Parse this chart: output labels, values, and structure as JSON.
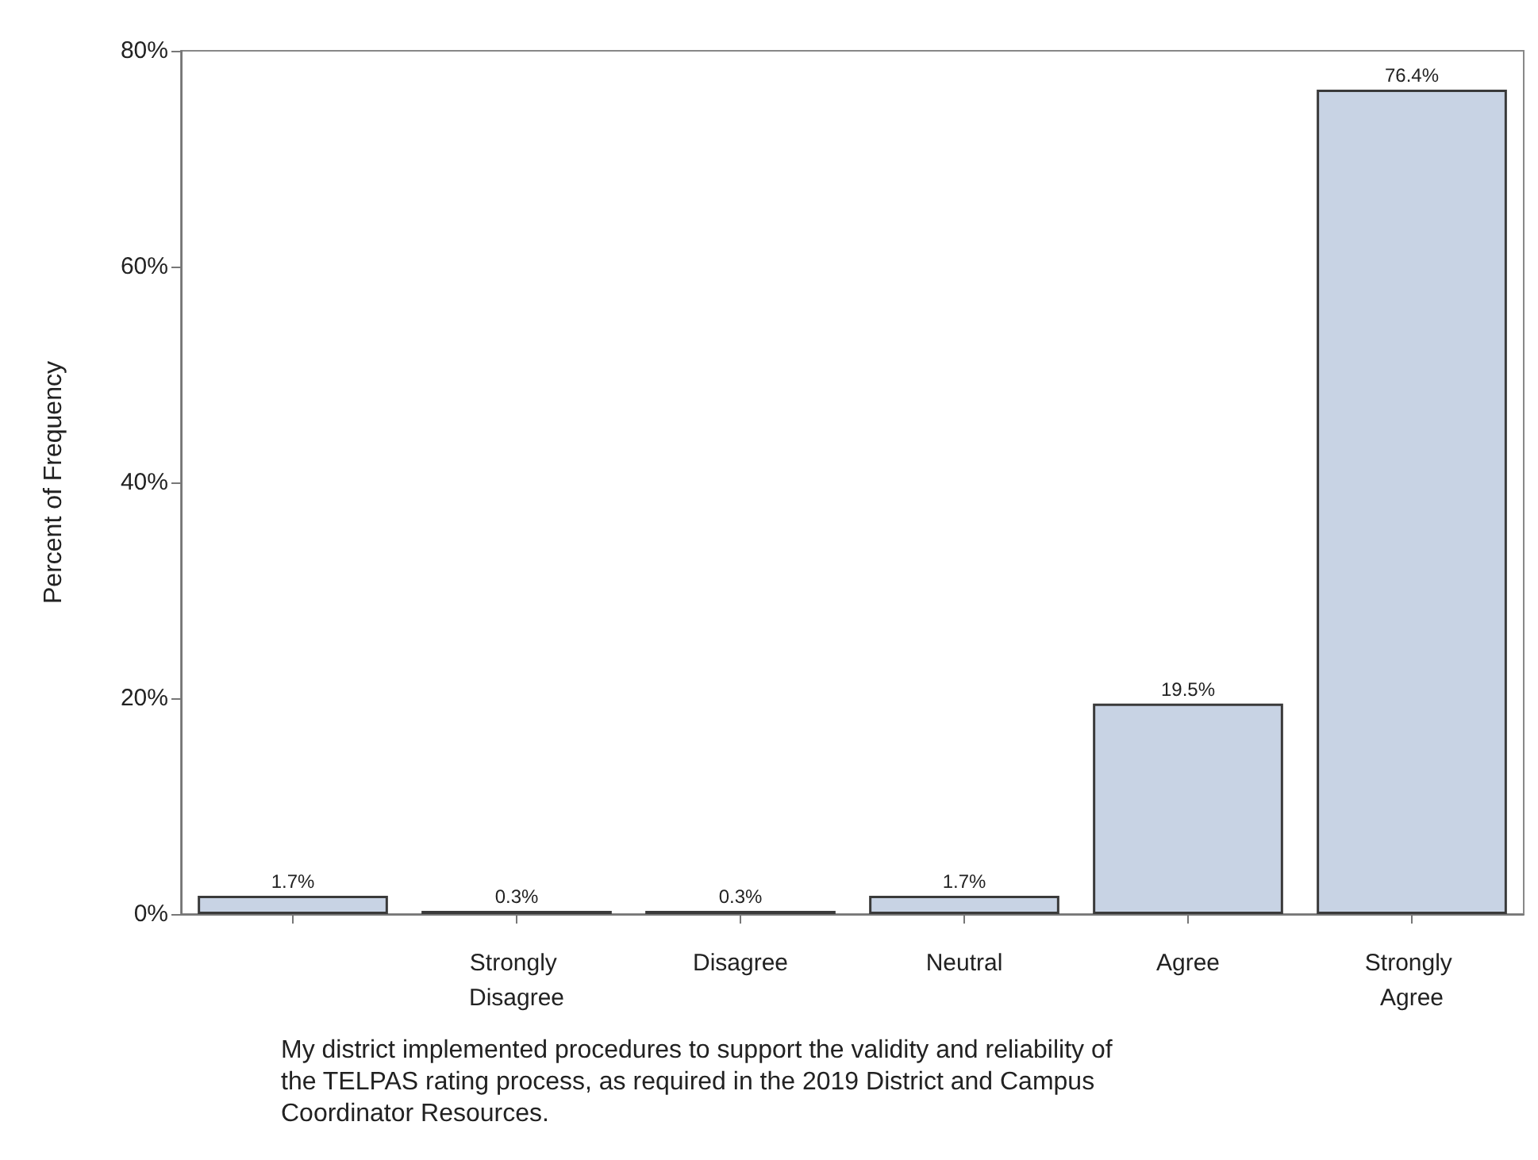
{
  "chart_data": {
    "type": "bar",
    "xlabel": "My district implemented procedures to support the validity and reliability of the TELPAS rating process, as required in the 2019 District and Campus Coordinator Resources.",
    "ylabel": "Percent of Frequency",
    "categories": [
      null,
      "Strongly Disagree",
      "Disagree",
      "Neutral",
      "Agree",
      "Strongly Agree"
    ],
    "values": [
      1.7,
      0.3,
      0.3,
      1.7,
      19.5,
      76.4
    ],
    "value_labels": [
      "1.7%",
      "0.3%",
      "0.3%",
      "1.7%",
      "19.5%",
      "76.4%"
    ],
    "color": "#c8d3e4",
    "ylim": [
      0,
      80
    ],
    "yticks": [
      {
        "value": 0,
        "label": "0%"
      },
      {
        "value": 20,
        "label": "20%"
      },
      {
        "value": 40,
        "label": "40%"
      },
      {
        "value": 60,
        "label": "60%"
      },
      {
        "value": 80,
        "label": "80%"
      }
    ],
    "grid": false
  }
}
